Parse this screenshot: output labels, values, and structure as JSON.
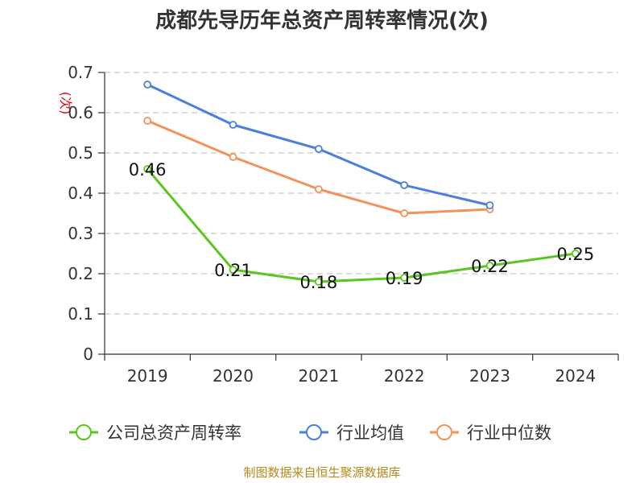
{
  "chart_data": {
    "type": "line",
    "title": "成都先导历年总资产周转率情况(次)",
    "ylabel": "(次)",
    "xlabel": "",
    "categories": [
      "2019",
      "2020",
      "2021",
      "2022",
      "2023",
      "2024"
    ],
    "ylim": [
      0,
      0.7
    ],
    "yticks": [
      "0",
      "0.1",
      "0.2",
      "0.3",
      "0.4",
      "0.5",
      "0.6",
      "0.7"
    ],
    "grid": true,
    "legend_position": "bottom",
    "series": [
      {
        "name": "公司总资产周转率",
        "color": "#5ac61e",
        "values": [
          0.46,
          0.21,
          0.18,
          0.19,
          0.22,
          0.25
        ],
        "labels": [
          "0.46",
          "0.21",
          "0.18",
          "0.19",
          "0.22",
          "0.25"
        ]
      },
      {
        "name": "行业均值",
        "color": "#4a7fdc",
        "values": [
          0.67,
          0.57,
          0.51,
          0.42,
          0.37,
          null
        ]
      },
      {
        "name": "行业中位数",
        "color": "#f4925a",
        "values": [
          0.58,
          0.49,
          0.41,
          0.35,
          0.36,
          null
        ]
      }
    ],
    "source": "制图数据来自恒生聚源数据库"
  }
}
